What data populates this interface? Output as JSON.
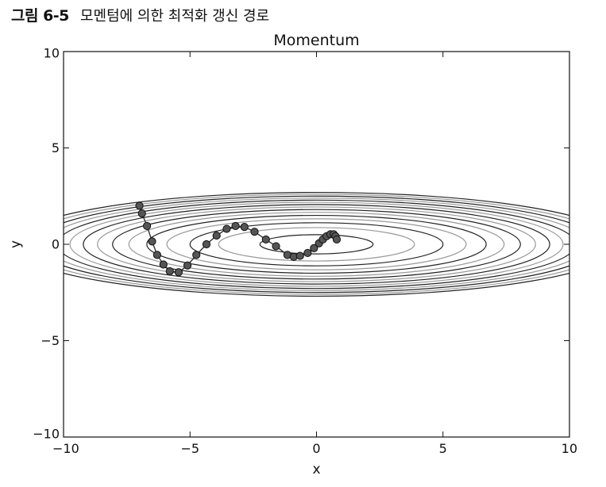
{
  "caption": {
    "prefix": "그림 6-5",
    "text": "모멘텀에 의한 최적화 갱신 경로"
  },
  "chart_data": {
    "type": "line",
    "title": "Momentum",
    "xlabel": "x",
    "ylabel": "y",
    "xlim": [
      -10,
      10
    ],
    "ylim": [
      -10,
      10
    ],
    "xticks": [
      -10,
      -5,
      0,
      5,
      10
    ],
    "yticks": [
      -10,
      -5,
      0,
      5,
      10
    ],
    "xtick_labels": [
      "−10",
      "−5",
      "0",
      "5",
      "10"
    ],
    "ytick_labels": [
      "−10",
      "−5",
      "0",
      "5",
      "10"
    ],
    "grid": false,
    "contour": {
      "function": "f(x, y) = x^2 / 20 + y^2",
      "levels": [
        0.25,
        0.75,
        1.25,
        1.75,
        2.25,
        2.75,
        3.25,
        3.75,
        4.25,
        4.75,
        5.25,
        5.75,
        6.25,
        6.75,
        7.25
      ],
      "colors": [
        "#222222",
        "#999999"
      ]
    },
    "series": [
      {
        "marker": "o",
        "color": "#333333",
        "x": [
          -7.0,
          -6.9,
          -6.7,
          -6.5,
          -6.3,
          -6.05,
          -5.8,
          -5.45,
          -5.1,
          -4.75,
          -4.35,
          -3.95,
          -3.55,
          -3.2,
          -2.85,
          -2.45,
          -2.0,
          -1.6,
          -1.15,
          -0.9,
          -0.65,
          -0.35,
          -0.1,
          0.1,
          0.25,
          0.4,
          0.55,
          0.68,
          0.75,
          0.8
        ],
        "y": [
          2.0,
          1.6,
          0.95,
          0.15,
          -0.55,
          -1.05,
          -1.4,
          -1.45,
          -1.1,
          -0.55,
          0.0,
          0.45,
          0.8,
          0.95,
          0.9,
          0.65,
          0.25,
          -0.1,
          -0.55,
          -0.65,
          -0.6,
          -0.45,
          -0.2,
          0.05,
          0.25,
          0.42,
          0.52,
          0.52,
          0.42,
          0.25
        ]
      }
    ]
  }
}
